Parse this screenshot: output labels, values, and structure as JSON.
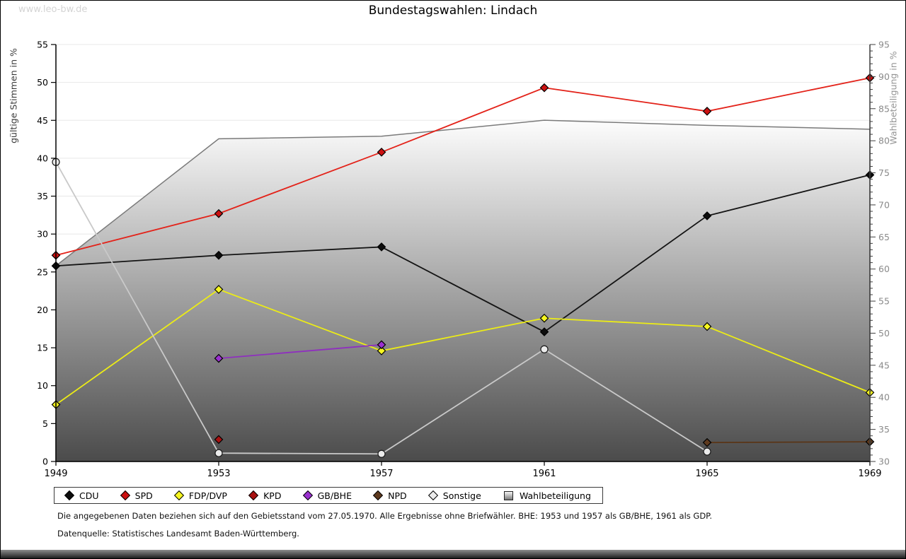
{
  "watermark": "www.leo-bw.de",
  "title": "Bundestagswahlen: Lindach",
  "footnote1": "Die angegebenen Daten beziehen sich auf den Gebietsstand vom 27.05.1970. Alle Ergebnisse ohne Briefwähler. BHE: 1953 und 1957 als GB/BHE, 1961 als GDP.",
  "footnote2": "Datenquelle: Statistisches Landesamt Baden-Württemberg.",
  "colors": {
    "grid": "#e8e8e8",
    "area_top": "#fdfdfd",
    "area_bottom": "#4b4b4b",
    "area_border": "#7a7a7a",
    "left_axis": "#000000",
    "right_axis": "#3c3c3c",
    "right_tick_labels": "#8a8a8a"
  },
  "chart_data": {
    "type": "line",
    "title": "Bundestagswahlen: Lindach",
    "x": [
      1949,
      1953,
      1957,
      1961,
      1965,
      1969
    ],
    "left_axis": {
      "label": "gültige Stimmen in %",
      "range": [
        0,
        55
      ],
      "ticks_every": 5
    },
    "right_axis": {
      "label": "Wahlbeteiligung in %",
      "range": [
        30,
        95
      ],
      "ticks_every": 5,
      "minor_ticks_every": 1
    },
    "grid": true,
    "legend_position": "bottom",
    "series": [
      {
        "name": "CDU",
        "axis": "left",
        "marker": "diamond",
        "line_color": "#141414",
        "marker_fill": "#0d0d0d",
        "values": [
          25.8,
          27.2,
          28.3,
          17.1,
          32.4,
          37.8
        ]
      },
      {
        "name": "SPD",
        "axis": "left",
        "marker": "diamond",
        "line_color": "#e32219",
        "marker_fill": "#cc1111",
        "values": [
          27.2,
          32.7,
          40.8,
          49.3,
          46.2,
          50.6
        ]
      },
      {
        "name": "FDP/DVP",
        "axis": "left",
        "marker": "diamond",
        "line_color": "#ecec16",
        "marker_fill": "#f7f720",
        "values": [
          7.5,
          22.7,
          14.6,
          18.9,
          17.8,
          9.1
        ]
      },
      {
        "name": "KPD",
        "axis": "left",
        "marker": "diamond",
        "line_color": "#a81111",
        "marker_fill": "#a81111",
        "values": [
          null,
          2.9,
          null,
          null,
          null,
          null
        ]
      },
      {
        "name": "GB/BHE",
        "axis": "left",
        "marker": "diamond",
        "line_color": "#8f2fbf",
        "marker_fill": "#9a30d0",
        "values": [
          null,
          13.6,
          15.4,
          null,
          null,
          null
        ]
      },
      {
        "name": "NPD",
        "axis": "left",
        "marker": "diamond",
        "line_color": "#5a3517",
        "marker_fill": "#5e3a1e",
        "values": [
          null,
          null,
          null,
          null,
          2.5,
          2.6
        ]
      },
      {
        "name": "Sonstige",
        "axis": "left",
        "marker": "circle",
        "line_color": "#c9c9c9",
        "marker_fill": "#ebebeb",
        "values": [
          39.5,
          1.1,
          1.0,
          14.8,
          1.3,
          null
        ]
      },
      {
        "name": "Wahlbeteiligung",
        "axis": "right",
        "type": "area",
        "line_color": "#7a7a7a",
        "values": [
          60.5,
          80.3,
          80.7,
          83.2,
          82.4,
          81.8
        ]
      }
    ]
  }
}
